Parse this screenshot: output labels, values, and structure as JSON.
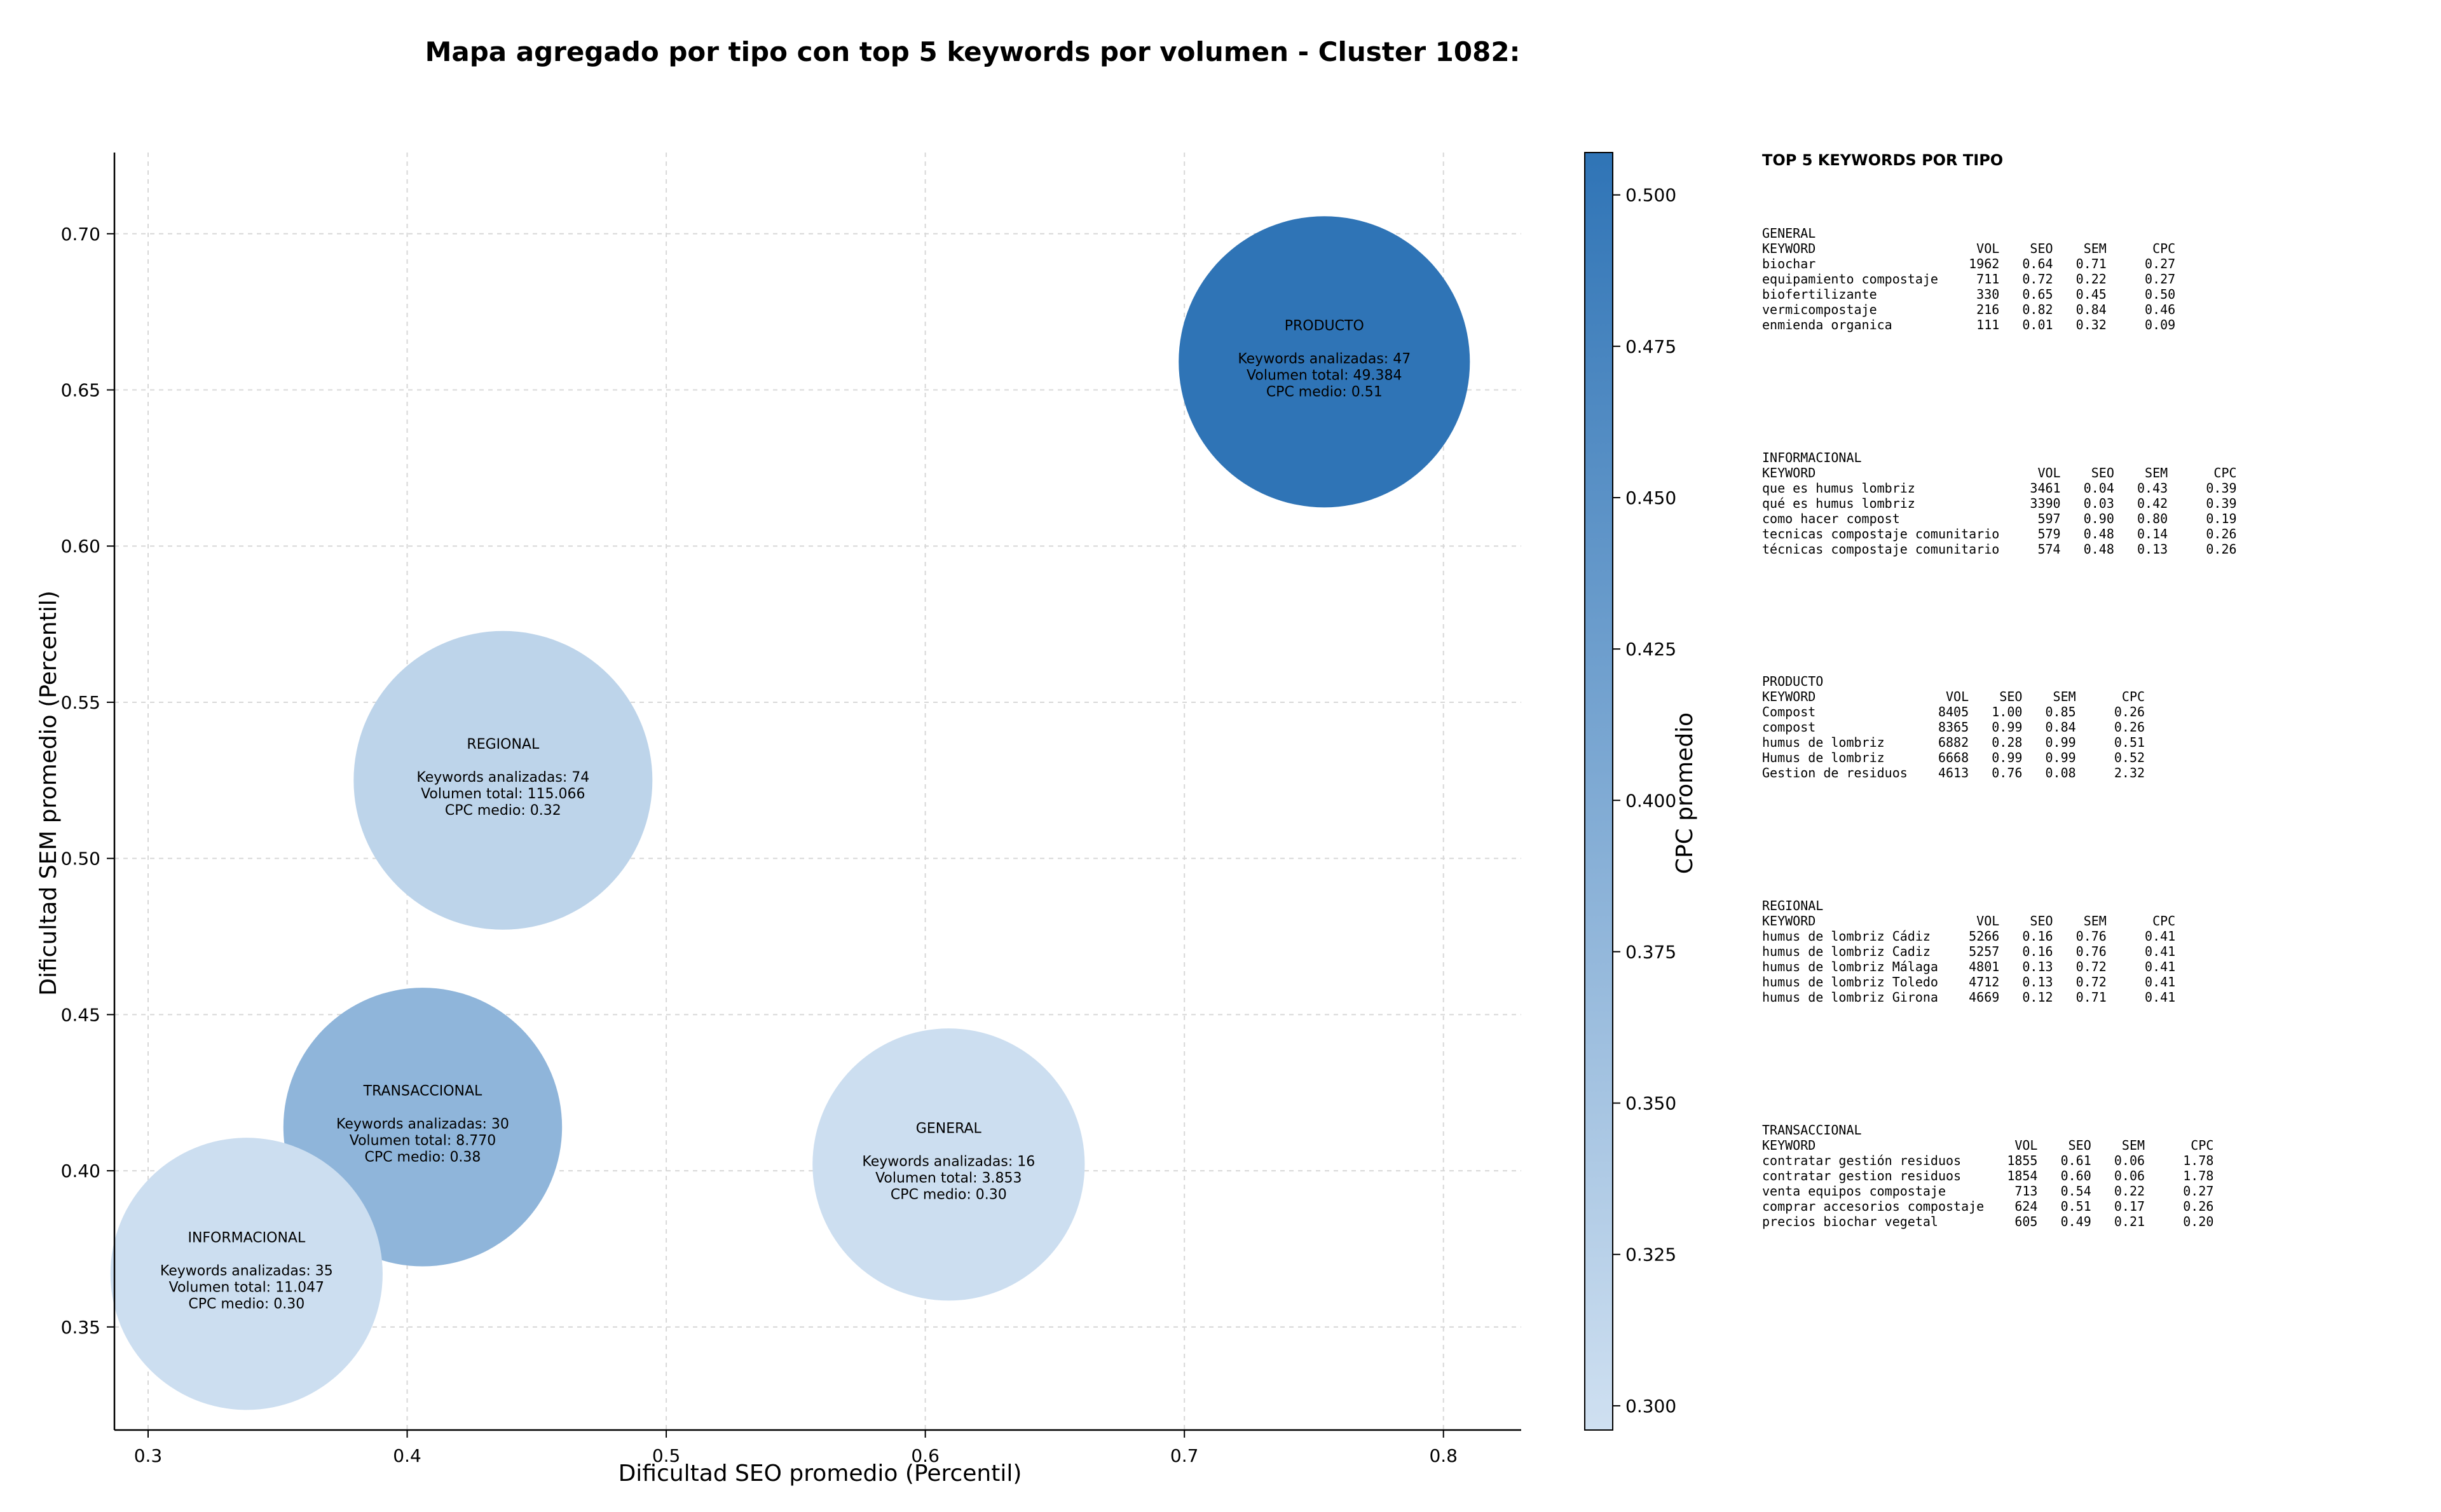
{
  "chart_data": {
    "type": "scatter",
    "subtype": "bubble",
    "title": "Mapa agregado por tipo con top 5 keywords por volumen - Cluster 1082:",
    "xlabel": "Dificultad SEO promedio (Percentil)",
    "ylabel": "Dificultad SEM promedio (Percentil)",
    "xlim": [
      0.287,
      0.83
    ],
    "ylim": [
      0.317,
      0.726
    ],
    "xticks": [
      "0.3",
      "0.4",
      "0.5",
      "0.6",
      "0.7",
      "0.8"
    ],
    "yticks": [
      "0.35",
      "0.40",
      "0.45",
      "0.50",
      "0.55",
      "0.60",
      "0.65",
      "0.70"
    ],
    "grid": true,
    "colorbar": {
      "label": "CPC promedio",
      "range": [
        0.296,
        0.507
      ],
      "ticks": [
        "0.300",
        "0.325",
        "0.350",
        "0.375",
        "0.400",
        "0.425",
        "0.450",
        "0.475",
        "0.500"
      ],
      "color_low": "#cfe0f1",
      "color_high": "#2f74b6"
    },
    "points": [
      {
        "name": "PRODUCTO",
        "x": 0.754,
        "y": 0.659,
        "keywords_label": "Keywords analizadas: 47",
        "volume_label": "Volumen total: 49.384",
        "cpc_label": "CPC medio: 0.51",
        "cpc": 0.507,
        "size": 95
      },
      {
        "name": "REGIONAL",
        "x": 0.437,
        "y": 0.525,
        "keywords_label": "Keywords analizadas: 74",
        "volume_label": "Volumen total: 115.066",
        "cpc_label": "CPC medio: 0.32",
        "cpc": 0.32,
        "size": 100
      },
      {
        "name": "TRANSACCIONAL",
        "x": 0.406,
        "y": 0.414,
        "keywords_label": "Keywords analizadas: 30",
        "volume_label": "Volumen total: 8.770",
        "cpc_label": "CPC medio: 0.38",
        "cpc": 0.38,
        "size": 87
      },
      {
        "name": "GENERAL",
        "x": 0.609,
        "y": 0.402,
        "keywords_label": "Keywords analizadas: 16",
        "volume_label": "Volumen total: 3.853",
        "cpc_label": "CPC medio: 0.30",
        "cpc": 0.3,
        "size": 83
      },
      {
        "name": "INFORMACIONAL",
        "x": 0.338,
        "y": 0.367,
        "keywords_label": "Keywords analizadas: 35",
        "volume_label": "Volumen total: 11.047",
        "cpc_label": "CPC medio: 0.30",
        "cpc": 0.3,
        "size": 83
      }
    ]
  },
  "side_panel": {
    "heading": "TOP 5 KEYWORDS POR TIPO",
    "groups": [
      {
        "name": "GENERAL",
        "header": "KEYWORD                     VOL    SEO    SEM      CPC",
        "rows": [
          "biochar                    1962   0.64   0.71     0.27",
          "equipamiento compostaje     711   0.72   0.22     0.27",
          "biofertilizante             330   0.65   0.45     0.50",
          "vermicompostaje             216   0.82   0.84     0.46",
          "enmienda organica           111   0.01   0.32     0.09"
        ]
      },
      {
        "name": "INFORMACIONAL",
        "header": "KEYWORD                             VOL    SEO    SEM      CPC",
        "rows": [
          "que es humus lombriz               3461   0.04   0.43     0.39",
          "qué es humus lombriz               3390   0.03   0.42     0.39",
          "como hacer compost                  597   0.90   0.80     0.19",
          "tecnicas compostaje comunitario     579   0.48   0.14     0.26",
          "técnicas compostaje comunitario     574   0.48   0.13     0.26"
        ]
      },
      {
        "name": "PRODUCTO",
        "header": "KEYWORD                 VOL    SEO    SEM      CPC",
        "rows": [
          "Compost                8405   1.00   0.85     0.26",
          "compost                8365   0.99   0.84     0.26",
          "humus de lombriz       6882   0.28   0.99     0.51",
          "Humus de lombriz       6668   0.99   0.99     0.52",
          "Gestion de residuos    4613   0.76   0.08     2.32"
        ]
      },
      {
        "name": "REGIONAL",
        "header": "KEYWORD                     VOL    SEO    SEM      CPC",
        "rows": [
          "humus de lombriz Cádiz     5266   0.16   0.76     0.41",
          "humus de lombriz Cadiz     5257   0.16   0.76     0.41",
          "humus de lombriz Málaga    4801   0.13   0.72     0.41",
          "humus de lombriz Toledo    4712   0.13   0.72     0.41",
          "humus de lombriz Girona    4669   0.12   0.71     0.41"
        ]
      },
      {
        "name": "TRANSACCIONAL",
        "header": "KEYWORD                          VOL    SEO    SEM      CPC",
        "rows": [
          "contratar gestión residuos      1855   0.61   0.06     1.78",
          "contratar gestion residuos      1854   0.60   0.06     1.78",
          "venta equipos compostaje         713   0.54   0.22     0.27",
          "comprar accesorios compostaje    624   0.51   0.17     0.26",
          "precios biochar vegetal          605   0.49   0.21     0.20"
        ]
      }
    ]
  }
}
